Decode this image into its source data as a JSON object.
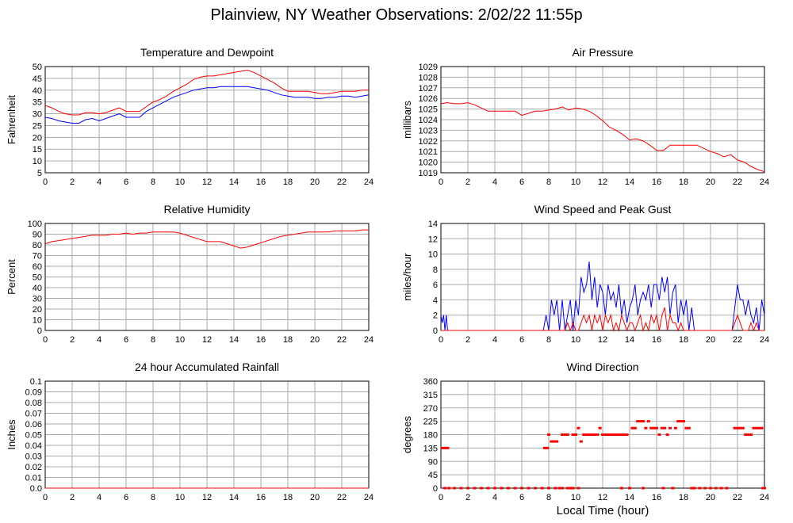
{
  "page": {
    "title": "Plainview, NY Weather Observations: 2/02/22 11:55p",
    "xlabel": "Local Time (hour)"
  },
  "colors": {
    "red": "#ff0000",
    "blue": "#0000ff",
    "grid": "#aaaaaa",
    "axis": "#000000"
  },
  "chart_data": [
    {
      "id": "temp",
      "type": "line",
      "title": "Temperature and Dewpoint",
      "ylabel": "Fahrenheit",
      "xlim": [
        0,
        24
      ],
      "ylim": [
        5,
        50
      ],
      "yticks": [
        5,
        10,
        15,
        20,
        25,
        30,
        35,
        40,
        45,
        50
      ],
      "xticks": [
        0,
        2,
        4,
        6,
        8,
        10,
        12,
        14,
        16,
        18,
        20,
        22,
        24
      ],
      "grid": true,
      "series": [
        {
          "color": "#ff0000",
          "x": [
            0,
            0.5,
            1,
            1.5,
            2,
            2.5,
            3,
            3.5,
            4,
            4.5,
            5,
            5.5,
            6,
            6.5,
            7,
            7.5,
            8,
            8.5,
            9,
            9.5,
            10,
            10.5,
            11,
            11.5,
            12,
            12.5,
            13,
            13.5,
            14,
            14.5,
            15,
            15.5,
            16,
            16.5,
            17,
            17.5,
            18,
            18.5,
            19,
            19.5,
            20,
            20.5,
            21,
            21.5,
            22,
            22.5,
            23,
            23.5,
            24
          ],
          "y": [
            33.5,
            32.5,
            31,
            30,
            29.5,
            29.5,
            30.5,
            30.5,
            30,
            30.5,
            31.5,
            32.5,
            31,
            31,
            31,
            33,
            35,
            36,
            37.5,
            39.5,
            41,
            42.5,
            44.5,
            45.5,
            46,
            46,
            46.5,
            47,
            47.5,
            48,
            48.5,
            47.5,
            46,
            44.5,
            43,
            41,
            39.5,
            39.5,
            39.5,
            39.5,
            39,
            38.5,
            38.5,
            39,
            39.5,
            39.5,
            39.5,
            40,
            40
          ]
        },
        {
          "color": "#0000ff",
          "x": [
            0,
            0.5,
            1,
            1.5,
            2,
            2.5,
            3,
            3.5,
            4,
            4.5,
            5,
            5.5,
            6,
            6.5,
            7,
            7.5,
            8,
            8.5,
            9,
            9.5,
            10,
            10.5,
            11,
            11.5,
            12,
            12.5,
            13,
            13.5,
            14,
            14.5,
            15,
            15.5,
            16,
            16.5,
            17,
            17.5,
            18,
            18.5,
            19,
            19.5,
            20,
            20.5,
            21,
            21.5,
            22,
            22.5,
            23,
            23.5,
            24
          ],
          "y": [
            28.5,
            28,
            27,
            26.5,
            26,
            26,
            27.5,
            28,
            27,
            28,
            29,
            30,
            28.5,
            28.5,
            28.5,
            31,
            32.5,
            34,
            35.5,
            37,
            38,
            39,
            40,
            40.5,
            41,
            41,
            41.5,
            41.5,
            41.5,
            41.5,
            41.5,
            41,
            40.5,
            40,
            39,
            38,
            37.5,
            37,
            37,
            37,
            36.5,
            36.5,
            37,
            37,
            37.5,
            37.5,
            37,
            37.5,
            38
          ]
        }
      ]
    },
    {
      "id": "pressure",
      "type": "line",
      "title": "Air Pressure",
      "ylabel": "millibars",
      "xlim": [
        0,
        24
      ],
      "ylim": [
        1019,
        1029
      ],
      "yticks": [
        1019,
        1020,
        1021,
        1022,
        1023,
        1024,
        1025,
        1026,
        1027,
        1028,
        1029
      ],
      "xticks": [
        0,
        2,
        4,
        6,
        8,
        10,
        12,
        14,
        16,
        18,
        20,
        22,
        24
      ],
      "grid": true,
      "series": [
        {
          "color": "#ff0000",
          "x": [
            0,
            0.5,
            1,
            1.5,
            2,
            2.5,
            3,
            3.5,
            4,
            4.5,
            5,
            5.5,
            6,
            6.5,
            7,
            7.5,
            8,
            8.5,
            9,
            9.5,
            10,
            10.5,
            11,
            11.5,
            12,
            12.5,
            13,
            13.5,
            14,
            14.5,
            15,
            15.5,
            16,
            16.5,
            17,
            17.5,
            18,
            18.5,
            19,
            19.5,
            20,
            20.5,
            21,
            21.5,
            22,
            22.5,
            23,
            23.5,
            24
          ],
          "y": [
            1025.5,
            1025.6,
            1025.5,
            1025.5,
            1025.6,
            1025.4,
            1025.1,
            1024.8,
            1024.8,
            1024.8,
            1024.8,
            1024.8,
            1024.4,
            1024.6,
            1024.8,
            1024.8,
            1024.9,
            1025.0,
            1025.2,
            1024.9,
            1025.1,
            1025.0,
            1024.8,
            1024.4,
            1023.9,
            1023.3,
            1023.0,
            1022.6,
            1022.1,
            1022.2,
            1022.0,
            1021.6,
            1021.1,
            1021.1,
            1021.6,
            1021.6,
            1021.6,
            1021.6,
            1021.6,
            1021.3,
            1021.0,
            1020.8,
            1020.5,
            1020.7,
            1020.2,
            1020.0,
            1019.6,
            1019.3,
            1019.1
          ]
        }
      ]
    },
    {
      "id": "humidity",
      "type": "line",
      "title": "Relative Humidity",
      "ylabel": "Percent",
      "xlim": [
        0,
        24
      ],
      "ylim": [
        0,
        100
      ],
      "yticks": [
        0,
        10,
        20,
        30,
        40,
        50,
        60,
        70,
        80,
        90,
        100
      ],
      "xticks": [
        0,
        2,
        4,
        6,
        8,
        10,
        12,
        14,
        16,
        18,
        20,
        22,
        24
      ],
      "grid": true,
      "series": [
        {
          "color": "#ff0000",
          "x": [
            0,
            0.5,
            1,
            1.5,
            2,
            2.5,
            3,
            3.5,
            4,
            4.5,
            5,
            5.5,
            6,
            6.5,
            7,
            7.5,
            8,
            8.5,
            9,
            9.5,
            10,
            10.5,
            11,
            11.5,
            12,
            12.5,
            13,
            13.5,
            14,
            14.5,
            15,
            15.5,
            16,
            16.5,
            17,
            17.5,
            18,
            18.5,
            19,
            19.5,
            20,
            20.5,
            21,
            21.5,
            22,
            22.5,
            23,
            23.5,
            24
          ],
          "y": [
            81,
            83,
            84,
            85,
            86,
            87,
            88,
            89,
            89,
            89,
            90,
            90,
            91,
            90,
            91,
            91,
            92,
            92,
            92,
            92,
            91,
            89,
            87,
            85,
            83,
            83,
            83,
            81,
            79,
            77,
            78,
            80,
            82,
            84,
            86,
            88,
            89,
            90,
            91,
            92,
            92,
            92,
            92,
            93,
            93,
            93,
            93,
            94,
            94
          ]
        }
      ]
    },
    {
      "id": "wind",
      "type": "line",
      "title": "Wind Speed and Peak Gust",
      "ylabel": "miles/hour",
      "xlim": [
        0,
        24
      ],
      "ylim": [
        0,
        14
      ],
      "yticks": [
        0,
        2,
        4,
        6,
        8,
        10,
        12,
        14
      ],
      "xticks": [
        0,
        2,
        4,
        6,
        8,
        10,
        12,
        14,
        16,
        18,
        20,
        22,
        24
      ],
      "grid": true,
      "series": [
        {
          "color": "#0000ff",
          "x": [
            0,
            0.1,
            0.2,
            0.3,
            0.4,
            0.5,
            0.6,
            7.6,
            7.8,
            8.0,
            8.2,
            8.4,
            8.6,
            8.8,
            9.0,
            9.2,
            9.4,
            9.6,
            9.8,
            10.0,
            10.2,
            10.4,
            10.6,
            10.8,
            11.0,
            11.2,
            11.4,
            11.6,
            11.8,
            12.0,
            12.2,
            12.4,
            12.6,
            12.8,
            13.0,
            13.2,
            13.4,
            13.6,
            13.8,
            14.0,
            14.2,
            14.4,
            14.6,
            14.8,
            15.0,
            15.2,
            15.4,
            15.6,
            15.8,
            16.0,
            16.2,
            16.4,
            16.6,
            16.8,
            17.0,
            17.2,
            17.4,
            17.6,
            17.8,
            18.0,
            18.2,
            18.4,
            18.6,
            18.8,
            19.0,
            21.6,
            21.8,
            22.0,
            22.2,
            22.4,
            22.6,
            22.8,
            23.0,
            23.2,
            23.4,
            23.6,
            23.8,
            24.0
          ],
          "y": [
            2,
            1,
            2,
            0,
            2,
            0,
            0,
            0,
            2,
            0,
            4,
            2,
            4,
            0,
            4,
            0,
            2,
            4,
            0,
            4,
            2,
            7,
            5,
            6,
            9,
            4,
            7,
            3,
            6,
            5,
            2,
            6,
            4,
            5,
            3,
            6,
            2,
            4,
            1,
            3,
            4,
            6,
            2,
            4,
            5,
            4,
            6,
            3,
            6,
            6,
            4,
            7,
            5,
            7,
            2,
            5,
            6,
            1,
            4,
            2,
            4,
            0,
            3,
            0,
            0,
            0,
            3,
            6,
            4,
            4,
            2,
            4,
            2,
            1,
            3,
            0,
            4,
            2
          ]
        },
        {
          "color": "#ff0000",
          "x": [
            0,
            9.0,
            9.2,
            9.4,
            9.6,
            9.8,
            10.0,
            10.2,
            10.4,
            10.6,
            10.8,
            11.0,
            11.2,
            11.4,
            11.6,
            11.8,
            12.0,
            12.2,
            12.4,
            12.6,
            12.8,
            13.0,
            13.2,
            13.4,
            13.6,
            13.8,
            14.0,
            14.2,
            14.4,
            14.6,
            14.8,
            15.0,
            15.2,
            15.4,
            15.6,
            15.8,
            16.0,
            16.2,
            16.4,
            16.6,
            16.8,
            17.0,
            17.2,
            17.4,
            17.6,
            17.8,
            18.0,
            18.2,
            21.6,
            21.8,
            22.0,
            22.2,
            22.4,
            22.6,
            22.8,
            23.0,
            23.2,
            23.4,
            23.6,
            23.8,
            24.0
          ],
          "y": [
            0,
            0,
            0,
            1,
            0,
            1,
            0,
            0,
            1,
            2,
            1,
            2,
            0,
            2,
            1,
            2,
            0,
            2,
            1,
            2,
            0,
            1,
            0,
            2,
            1,
            0,
            1,
            1,
            0,
            1,
            2,
            0,
            1,
            0,
            2,
            1,
            2,
            0,
            2,
            3,
            0,
            2,
            1,
            1,
            0,
            1,
            0,
            0,
            0,
            1,
            2,
            1,
            0,
            0,
            0,
            1,
            0,
            1,
            0,
            0,
            0
          ]
        }
      ]
    },
    {
      "id": "rain",
      "type": "line",
      "title": "24 hour Accumulated Rainfall",
      "ylabel": "Inches",
      "xlim": [
        0,
        24
      ],
      "ylim": [
        0,
        0.1
      ],
      "yticks": [
        0,
        0.01,
        0.02,
        0.03,
        0.04,
        0.05,
        0.06,
        0.07,
        0.08,
        0.09,
        0.1
      ],
      "ytick_labels": [
        "0.0",
        "0.01",
        "0.02",
        "0.03",
        "0.04",
        "0.05",
        "0.06",
        "0.07",
        "0.08",
        "0.09",
        "0.1"
      ],
      "xticks": [
        0,
        2,
        4,
        6,
        8,
        10,
        12,
        14,
        16,
        18,
        20,
        22,
        24
      ],
      "grid": true,
      "series": [
        {
          "color": "#ff0000",
          "x": [
            0,
            24
          ],
          "y": [
            0,
            0
          ]
        }
      ]
    },
    {
      "id": "direction",
      "type": "scatter",
      "title": "Wind Direction",
      "ylabel": "degrees",
      "xlim": [
        0,
        24
      ],
      "ylim": [
        0,
        360
      ],
      "yticks": [
        0,
        45,
        90,
        135,
        180,
        225,
        270,
        315,
        360
      ],
      "xticks": [
        0,
        2,
        4,
        6,
        8,
        10,
        12,
        14,
        16,
        18,
        20,
        22,
        24
      ],
      "grid": true,
      "series": [
        {
          "color": "#ff0000",
          "x": [
            0.1,
            0.3,
            0.5,
            7.7,
            7.9,
            8.0,
            8.2,
            8.4,
            8.6,
            8.8,
            9.0,
            9.2,
            9.4,
            9.6,
            9.8,
            10.0,
            10.2,
            10.4,
            10.6,
            10.8,
            11.0,
            11.2,
            11.4,
            11.6,
            11.8,
            12.0,
            12.2,
            12.4,
            12.6,
            12.8,
            13.0,
            13.2,
            13.4,
            13.6,
            13.8,
            14.0,
            14.2,
            14.4,
            14.6,
            14.8,
            15.0,
            15.2,
            15.4,
            15.6,
            15.8,
            16.0,
            16.2,
            16.4,
            16.6,
            16.8,
            17.0,
            17.2,
            17.4,
            17.6,
            17.8,
            18.0,
            18.2,
            18.4,
            18.6,
            21.8,
            22.0,
            22.2,
            22.4,
            22.6,
            22.8,
            23.0,
            23.2,
            23.4,
            23.6,
            23.8,
            24.0
          ],
          "y": [
            135,
            135,
            135,
            135,
            135,
            180,
            157,
            157,
            157,
            0,
            180,
            180,
            180,
            0,
            180,
            180,
            202,
            157,
            180,
            180,
            180,
            180,
            180,
            180,
            202,
            180,
            180,
            180,
            180,
            180,
            180,
            180,
            180,
            180,
            180,
            0,
            202,
            202,
            225,
            225,
            225,
            202,
            225,
            202,
            202,
            202,
            180,
            202,
            202,
            180,
            202,
            0,
            202,
            225,
            225,
            225,
            202,
            202,
            0,
            202,
            202,
            202,
            202,
            180,
            180,
            180,
            202,
            202,
            202,
            202,
            0
          ]
        },
        {
          "color": "#ff0000",
          "x": [
            0.3,
            0.6,
            1.0,
            1.5,
            2.0,
            2.5,
            3.0,
            3.5,
            4.0,
            4.5,
            5.0,
            5.5,
            6.0,
            6.5,
            7.0,
            7.5,
            8.0,
            8.5,
            9.0,
            9.4,
            9.8,
            10.2,
            13.4,
            15.0,
            16.5,
            17.2,
            18.8,
            19.2,
            19.6,
            20.0,
            20.4,
            20.8,
            21.2,
            23.9
          ],
          "y": [
            0,
            0,
            0,
            0,
            0,
            0,
            0,
            0,
            0,
            0,
            0,
            0,
            0,
            0,
            0,
            0,
            0,
            0,
            0,
            0,
            0,
            0,
            0,
            0,
            0,
            0,
            0,
            0,
            0,
            0,
            0,
            0,
            0,
            0
          ]
        }
      ]
    }
  ]
}
